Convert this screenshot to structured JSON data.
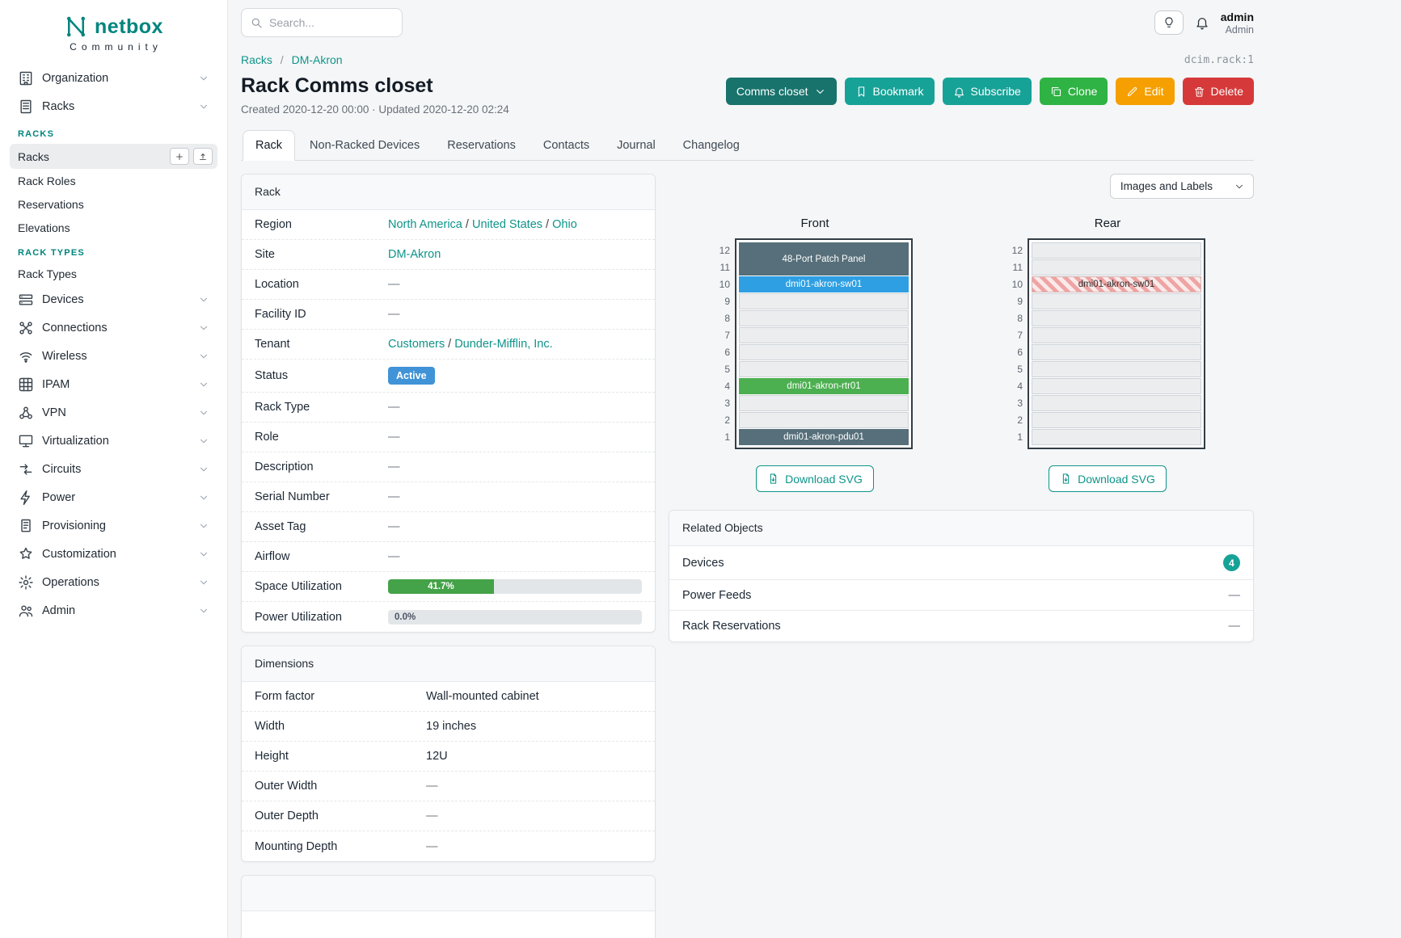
{
  "brand": {
    "name": "netbox",
    "tagline": "Community"
  },
  "topbar": {
    "search_placeholder": "Search...",
    "user": {
      "name": "admin",
      "role": "Admin"
    }
  },
  "sidebar": {
    "items_top": [
      {
        "label": "Organization",
        "icon": "building"
      },
      {
        "label": "Racks",
        "icon": "rack",
        "expanded": true
      }
    ],
    "groups": [
      {
        "heading": "RACKS",
        "items": [
          {
            "label": "Racks",
            "active": true,
            "actions": [
              "add",
              "import"
            ]
          },
          {
            "label": "Rack Roles"
          },
          {
            "label": "Reservations"
          },
          {
            "label": "Elevations"
          }
        ]
      },
      {
        "heading": "RACK TYPES",
        "items": [
          {
            "label": "Rack Types"
          }
        ]
      }
    ],
    "items_bottom": [
      {
        "label": "Devices",
        "icon": "devices"
      },
      {
        "label": "Connections",
        "icon": "connections"
      },
      {
        "label": "Wireless",
        "icon": "wireless"
      },
      {
        "label": "IPAM",
        "icon": "ipam"
      },
      {
        "label": "VPN",
        "icon": "vpn"
      },
      {
        "label": "Virtualization",
        "icon": "virtualization"
      },
      {
        "label": "Circuits",
        "icon": "circuits"
      },
      {
        "label": "Power",
        "icon": "power"
      },
      {
        "label": "Provisioning",
        "icon": "provisioning"
      },
      {
        "label": "Customization",
        "icon": "customization"
      },
      {
        "label": "Operations",
        "icon": "operations"
      },
      {
        "label": "Admin",
        "icon": "admin"
      }
    ]
  },
  "breadcrumb": {
    "items": [
      "Racks",
      "DM-Akron"
    ],
    "object_ref": "dcim.rack:1"
  },
  "page": {
    "title": "Rack Comms closet",
    "meta": "Created 2020-12-20 00:00 · Updated 2020-12-20 02:24"
  },
  "actions": [
    {
      "label": "Comms closet",
      "icon": "caret-down",
      "style": "context"
    },
    {
      "label": "Bookmark",
      "icon": "bookmark",
      "style": "teal"
    },
    {
      "label": "Subscribe",
      "icon": "bell",
      "style": "teal"
    },
    {
      "label": "Clone",
      "icon": "copy",
      "style": "green"
    },
    {
      "label": "Edit",
      "icon": "pencil",
      "style": "orange"
    },
    {
      "label": "Delete",
      "icon": "trash",
      "style": "red"
    }
  ],
  "tabs": [
    {
      "label": "Rack",
      "active": true
    },
    {
      "label": "Non-Racked Devices"
    },
    {
      "label": "Reservations"
    },
    {
      "label": "Contacts"
    },
    {
      "label": "Journal"
    },
    {
      "label": "Changelog"
    }
  ],
  "rack_card": {
    "title": "Rack",
    "rows": [
      {
        "label": "Region",
        "links": [
          "North America",
          "United States",
          "Ohio"
        ]
      },
      {
        "label": "Site",
        "links": [
          "DM-Akron"
        ]
      },
      {
        "label": "Location",
        "value": "—"
      },
      {
        "label": "Facility ID",
        "value": "—"
      },
      {
        "label": "Tenant",
        "links": [
          "Customers",
          "Dunder-Mifflin, Inc."
        ]
      },
      {
        "label": "Status",
        "badge": "Active",
        "badge_color": "#4093d6"
      },
      {
        "label": "Rack Type",
        "value": "—"
      },
      {
        "label": "Role",
        "value": "—"
      },
      {
        "label": "Description",
        "value": "—"
      },
      {
        "label": "Serial Number",
        "value": "—"
      },
      {
        "label": "Asset Tag",
        "value": "—"
      },
      {
        "label": "Airflow",
        "value": "—"
      },
      {
        "label": "Space Utilization",
        "progress": {
          "percent": 41.7,
          "label": "41.7%",
          "color": "#44a248",
          "label_in_fill": true
        }
      },
      {
        "label": "Power Utilization",
        "progress": {
          "percent": 0,
          "label": "0.0%",
          "color": "#44a248",
          "label_in_fill": false
        }
      }
    ]
  },
  "dimensions_card": {
    "title": "Dimensions",
    "rows": [
      {
        "label": "Form factor",
        "value": "Wall-mounted cabinet"
      },
      {
        "label": "Width",
        "value": "19 inches"
      },
      {
        "label": "Height",
        "value": "12U"
      },
      {
        "label": "Outer Width",
        "value": "—"
      },
      {
        "label": "Outer Depth",
        "value": "—"
      },
      {
        "label": "Mounting Depth",
        "value": "—"
      }
    ]
  },
  "elevations": {
    "display_select": "Images and Labels",
    "download_label": "Download SVG",
    "unit_count": 12,
    "views": [
      {
        "title": "Front",
        "devices": [
          {
            "top_unit": 12,
            "height": 2,
            "label": "48-Port Patch Panel",
            "color": "#566f7a"
          },
          {
            "top_unit": 10,
            "height": 1,
            "label": "dmi01-akron-sw01",
            "color": "#2e9fe3"
          },
          {
            "top_unit": 4,
            "height": 1,
            "label": "dmi01-akron-rtr01",
            "color": "#4caf50"
          },
          {
            "top_unit": 1,
            "height": 1,
            "label": "dmi01-akron-pdu01",
            "color": "#566f7a"
          }
        ]
      },
      {
        "title": "Rear",
        "devices": [
          {
            "top_unit": 10,
            "height": 1,
            "label": "dmi01-akron-sw01",
            "hatched": true
          }
        ]
      }
    ]
  },
  "related_card": {
    "title": "Related Objects",
    "rows": [
      {
        "label": "Devices",
        "badge": "4"
      },
      {
        "label": "Power Feeds",
        "value": "—"
      },
      {
        "label": "Rack Reservations",
        "value": "—"
      }
    ]
  },
  "colors": {
    "teal": "#00857e",
    "link": "#0e948a",
    "button_teal": "#17a297",
    "button_context": "#18736c",
    "green": "#2fb344",
    "orange": "#f59f00",
    "red": "#d63939",
    "status_active": "#4093d6"
  }
}
